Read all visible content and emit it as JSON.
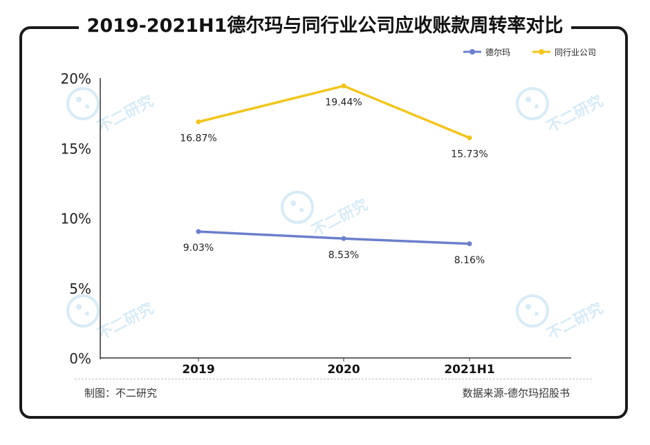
{
  "title": "2019-2021H1德尔玛与同行业公司应收账款周转率对比",
  "footer": {
    "credit": "制图：不二研究",
    "source": "数据来源-德尔玛招股书"
  },
  "watermark_text": "不二研究",
  "colors": {
    "series_1": "#6b7fcc",
    "series_2": "#f2c51a",
    "axis": "#333333",
    "watermark": "#a9d4ec"
  },
  "chart_data": {
    "type": "line",
    "categories": [
      "2019",
      "2020",
      "2021H1"
    ],
    "ylim": [
      0,
      20
    ],
    "yticks": [
      "0%",
      "5%",
      "10%",
      "15%",
      "20%"
    ],
    "grid": false,
    "legend_position": "top-right",
    "series": [
      {
        "name": "德尔玛",
        "values": [
          9.03,
          8.53,
          8.16
        ],
        "labels": [
          "9.03%",
          "8.53%",
          "8.16%"
        ]
      },
      {
        "name": "同行业公司",
        "values": [
          16.87,
          19.44,
          15.73
        ],
        "labels": [
          "16.87%",
          "19.44%",
          "15.73%"
        ]
      }
    ]
  }
}
